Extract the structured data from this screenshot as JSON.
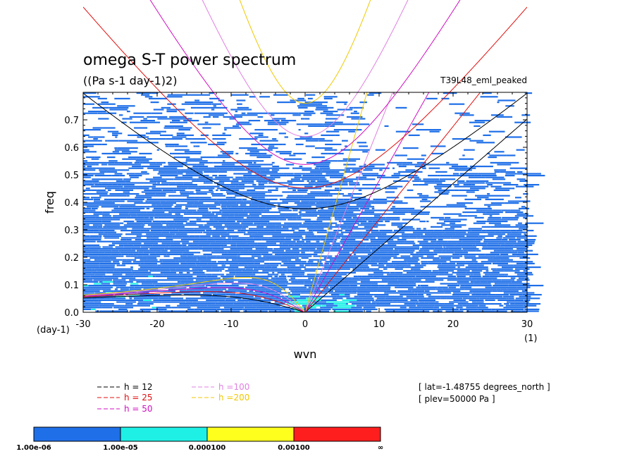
{
  "chart_data": {
    "type": "heatmap",
    "title": "omega S-T power spectrum",
    "subtitle": "((Pa s-1 day-1)2)",
    "run_label": "T39L48_eml_peaked",
    "xlabel": "wvn",
    "ylabel": "freq",
    "x_unit_label": "(1)",
    "y_unit_label": "(day-1)",
    "xlim": [
      -30,
      30
    ],
    "ylim": [
      0,
      0.8
    ],
    "x_ticks": [
      "-30",
      "-20",
      "-10",
      "0",
      "10",
      "20",
      "30"
    ],
    "y_ticks": [
      "0.0",
      "0.1",
      "0.2",
      "0.3",
      "0.4",
      "0.5",
      "0.6",
      "0.7"
    ],
    "info": [
      "[ lat=-1.48755 degrees_north ]",
      "[ plev=50000 Pa ]"
    ],
    "colorbar": {
      "labels": [
        "1.00e-06",
        "1.00e-05",
        "0.000100",
        "0.00100",
        "∞"
      ],
      "colors": [
        "#1f6fe8",
        "#1ef0e6",
        "#ffff1e",
        "#ff1e1e"
      ]
    },
    "series": [
      {
        "name": "h = 12",
        "depth": 12,
        "color": "#000000"
      },
      {
        "name": "h = 25",
        "depth": 25,
        "color": "#e01010"
      },
      {
        "name": "h = 50",
        "depth": 50,
        "color": "#d010c0"
      },
      {
        "name": "h =100",
        "depth": 100,
        "color": "#e080e0"
      },
      {
        "name": "h =200",
        "depth": 200,
        "color": "#f0c800"
      }
    ]
  }
}
